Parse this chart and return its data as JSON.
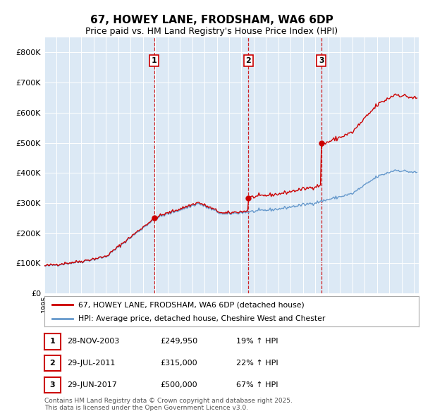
{
  "title": "67, HOWEY LANE, FRODSHAM, WA6 6DP",
  "subtitle": "Price paid vs. HM Land Registry's House Price Index (HPI)",
  "bg_color": "#dce9f5",
  "red_line_label": "67, HOWEY LANE, FRODSHAM, WA6 6DP (detached house)",
  "blue_line_label": "HPI: Average price, detached house, Cheshire West and Chester",
  "transactions": [
    {
      "num": 1,
      "date": "28-NOV-2003",
      "price": 249950,
      "pct": "19%",
      "dir": "↑"
    },
    {
      "num": 2,
      "date": "29-JUL-2011",
      "price": 315000,
      "pct": "22%",
      "dir": "↑"
    },
    {
      "num": 3,
      "date": "29-JUN-2017",
      "price": 500000,
      "pct": "67%",
      "dir": "↑"
    }
  ],
  "transaction_dates_decimal": [
    2003.91,
    2011.57,
    2017.49
  ],
  "transaction_prices": [
    249950,
    315000,
    500000
  ],
  "ylim": [
    0,
    850000
  ],
  "yticks": [
    0,
    100000,
    200000,
    300000,
    400000,
    500000,
    600000,
    700000,
    800000
  ],
  "ytick_labels": [
    "£0",
    "£100K",
    "£200K",
    "£300K",
    "£400K",
    "£500K",
    "£600K",
    "£700K",
    "£800K"
  ],
  "footer": "Contains HM Land Registry data © Crown copyright and database right 2025.\nThis data is licensed under the Open Government Licence v3.0.",
  "red_color": "#cc0000",
  "blue_color": "#6699cc",
  "title_fontsize": 11,
  "subtitle_fontsize": 9
}
